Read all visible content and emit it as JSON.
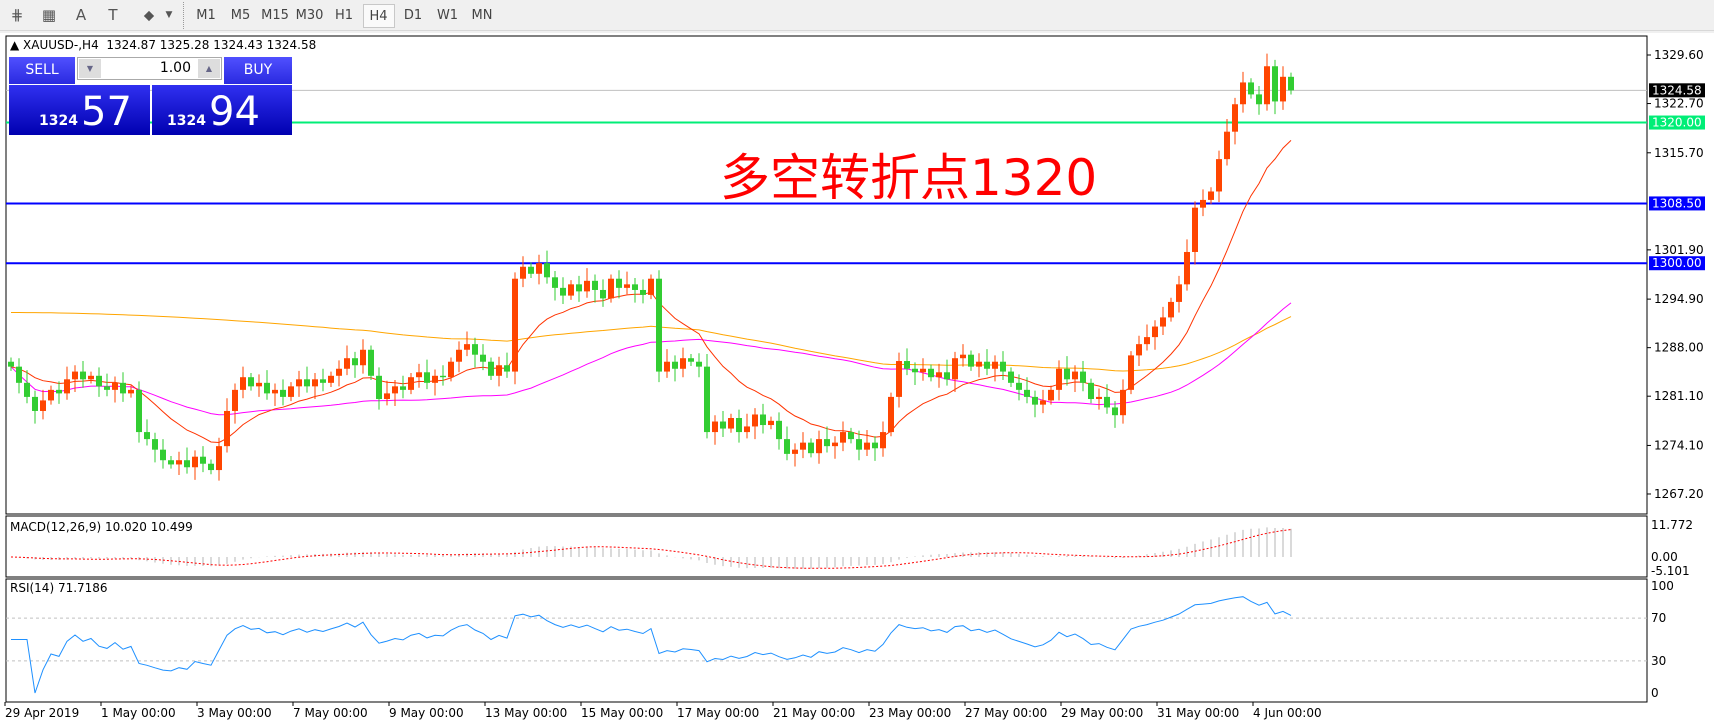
{
  "toolbar": {
    "icons": [
      "fibonacci-expansion-icon",
      "fibonacci-fan-icon",
      "text-icon",
      "text-label-icon",
      "arrows-icon"
    ],
    "icon_glyphs": [
      "⋕",
      "▦",
      "A",
      "T",
      "⬥"
    ],
    "timeframes": [
      "M1",
      "M5",
      "M15",
      "M30",
      "H1",
      "H4",
      "D1",
      "W1",
      "MN"
    ],
    "active_timeframe": "H4"
  },
  "chart": {
    "symbol_info": "XAUUSD-,H4  1324.87 1325.28 1324.43 1324.58",
    "annotation": "多空转折点1320",
    "colors": {
      "up": "#ff4500",
      "down": "#32cd32",
      "ma_fast": "#ff3300",
      "ma_mid": "#ff00ff",
      "ma_slow": "#ffa500",
      "level_green": "#00ee77",
      "level_blue": "#0000ff",
      "macd_signal": "#ff0000",
      "macd_hist": "#b4b4b4",
      "rsi": "#1e90ff"
    }
  },
  "trade_panel": {
    "sell_label": "SELL",
    "buy_label": "BUY",
    "lot": "1.00",
    "sell_small": "1324",
    "sell_big": "57",
    "buy_small": "1324",
    "buy_big": "94"
  },
  "price_axis": {
    "ticks": [
      "1329.60",
      "1322.70",
      "1315.70",
      "1301.90",
      "1294.90",
      "1288.00",
      "1281.10",
      "1274.10",
      "1267.20"
    ],
    "current": "1324.58",
    "levels": [
      {
        "label": "1320.00",
        "value": 1320,
        "color": "green"
      },
      {
        "label": "1308.50",
        "value": 1308.5,
        "color": "blue"
      },
      {
        "label": "1300.00",
        "value": 1300,
        "color": "blue"
      }
    ]
  },
  "macd": {
    "label": "MACD(12,26,9) 10.020 10.499",
    "ticks": [
      "11.772",
      "0.00",
      "-5.101"
    ]
  },
  "rsi": {
    "label": "RSI(14) 71.7186",
    "ticks": [
      "100",
      "70",
      "30",
      "0"
    ]
  },
  "time_axis": [
    "29 Apr 2019",
    "1 May 00:00",
    "3 May 00:00",
    "7 May 00:00",
    "9 May 00:00",
    "13 May 00:00",
    "15 May 00:00",
    "17 May 00:00",
    "21 May 00:00",
    "23 May 00:00",
    "27 May 00:00",
    "29 May 00:00",
    "31 May 00:00",
    "4 Jun 00:00"
  ],
  "chart_data": {
    "type": "candlestick",
    "symbol": "XAUUSD-",
    "timeframe": "H4",
    "ylim": [
      1267.2,
      1329.6
    ],
    "closes": [
      1285.3,
      1283,
      1281,
      1279,
      1280.5,
      1282,
      1281.5,
      1283.5,
      1284.6,
      1283.5,
      1284,
      1282.5,
      1282,
      1283,
      1281.5,
      1282,
      1276,
      1275,
      1273.5,
      1272,
      1271.4,
      1272,
      1271,
      1272.5,
      1271.5,
      1270.6,
      1274,
      1279,
      1282,
      1283.8,
      1282.5,
      1283,
      1281.5,
      1282,
      1281,
      1282.5,
      1283.5,
      1282.5,
      1283.5,
      1283,
      1284,
      1285,
      1286.5,
      1285.5,
      1287.7,
      1284,
      1280.7,
      1281.5,
      1282.5,
      1282,
      1283.8,
      1284.5,
      1283,
      1284,
      1283.8,
      1286,
      1287.7,
      1288.5,
      1287,
      1286,
      1284,
      1285.5,
      1284.6,
      1297.8,
      1299.5,
      1298.5,
      1300,
      1298,
      1296.5,
      1295.4,
      1297,
      1296,
      1297.5,
      1296.2,
      1295,
      1297.8,
      1296.5,
      1297,
      1296.2,
      1295.5,
      1297.8,
      1284.6,
      1286,
      1285,
      1286.5,
      1286,
      1285.3,
      1276,
      1277.5,
      1276.5,
      1278,
      1276,
      1276.8,
      1278.5,
      1277,
      1277.6,
      1275,
      1272.9,
      1273.5,
      1274.5,
      1273,
      1275,
      1274,
      1274.5,
      1276,
      1275,
      1273.5,
      1274.5,
      1273.7,
      1276,
      1281,
      1286.1,
      1285,
      1284.5,
      1285,
      1283.8,
      1284.5,
      1283.5,
      1286.5,
      1287,
      1285.3,
      1286,
      1285,
      1286,
      1284.6,
      1283,
      1282,
      1281,
      1279.9,
      1280.5,
      1282,
      1285,
      1283.5,
      1284.6,
      1283,
      1280.7,
      1281,
      1279.5,
      1278.4,
      1282,
      1286.9,
      1288.5,
      1289.5,
      1291,
      1292.3,
      1294.5,
      1297,
      1301.6,
      1307.9,
      1309,
      1310.2,
      1314.8,
      1318.7,
      1322.6,
      1325.7,
      1324,
      1322.6,
      1328,
      1323,
      1326.5,
      1324.58
    ],
    "first_open": 1286
  }
}
